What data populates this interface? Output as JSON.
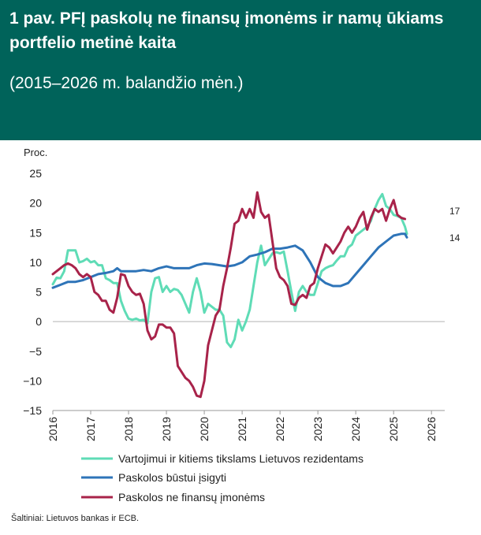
{
  "header": {
    "title": "1 pav. PFĮ paskolų ne finansų įmonėms ir namų ūkiams portfelio metinė kaita",
    "subtitle": "(2015–2026 m. balandžio mėn.)"
  },
  "source": "Šaltiniai: Lietuvos bankas ir ECB.",
  "colors": {
    "header_bg": "#00635a",
    "consumer": "#5fdcb6",
    "housing": "#2e74b8",
    "nfc": "#a8234a"
  },
  "chart_data": {
    "type": "line",
    "ylabel": "Proc.",
    "ylim": [
      -15,
      25
    ],
    "yticks": [
      25,
      20,
      15,
      10,
      5,
      0,
      -5,
      -10,
      -15
    ],
    "xlim": [
      2016,
      2026.35
    ],
    "xticks": [
      "2016",
      "2017",
      "2018",
      "2019",
      "2020",
      "2021",
      "2022",
      "2023",
      "2024",
      "2025",
      "2026"
    ],
    "grid": false,
    "legend_position": "bottom",
    "end_labels": [
      "17",
      "14"
    ],
    "series": [
      {
        "name": "Vartojimui ir kitiems tikslams Lietuvos rezidentams",
        "color_key": "consumer",
        "points": [
          [
            2016.0,
            6.3
          ],
          [
            2016.1,
            7.4
          ],
          [
            2016.2,
            7.3
          ],
          [
            2016.3,
            8.5
          ],
          [
            2016.4,
            12.0
          ],
          [
            2016.5,
            12.0
          ],
          [
            2016.6,
            12.0
          ],
          [
            2016.7,
            10.0
          ],
          [
            2016.8,
            10.2
          ],
          [
            2016.9,
            10.6
          ],
          [
            2017.0,
            10.0
          ],
          [
            2017.1,
            10.2
          ],
          [
            2017.2,
            9.5
          ],
          [
            2017.3,
            9.5
          ],
          [
            2017.4,
            7.3
          ],
          [
            2017.5,
            7.0
          ],
          [
            2017.6,
            6.5
          ],
          [
            2017.7,
            6.5
          ],
          [
            2017.8,
            3.5
          ],
          [
            2017.9,
            1.8
          ],
          [
            2018.0,
            0.5
          ],
          [
            2018.1,
            0.3
          ],
          [
            2018.2,
            0.5
          ],
          [
            2018.3,
            0.2
          ],
          [
            2018.4,
            0.3
          ],
          [
            2018.5,
            -0.3
          ],
          [
            2018.6,
            5.0
          ],
          [
            2018.7,
            7.3
          ],
          [
            2018.8,
            7.5
          ],
          [
            2018.9,
            5.0
          ],
          [
            2019.0,
            6.0
          ],
          [
            2019.1,
            5.0
          ],
          [
            2019.2,
            5.5
          ],
          [
            2019.3,
            5.3
          ],
          [
            2019.4,
            4.5
          ],
          [
            2019.5,
            3.0
          ],
          [
            2019.6,
            1.5
          ],
          [
            2019.7,
            5.0
          ],
          [
            2019.8,
            7.3
          ],
          [
            2019.9,
            5.0
          ],
          [
            2020.0,
            1.5
          ],
          [
            2020.1,
            3.0
          ],
          [
            2020.2,
            2.5
          ],
          [
            2020.3,
            2.0
          ],
          [
            2020.4,
            2.0
          ],
          [
            2020.5,
            1.0
          ],
          [
            2020.6,
            -3.5
          ],
          [
            2020.7,
            -4.3
          ],
          [
            2020.8,
            -3.0
          ],
          [
            2020.9,
            0.3
          ],
          [
            2021.0,
            -1.5
          ],
          [
            2021.1,
            0.0
          ],
          [
            2021.2,
            2.0
          ],
          [
            2021.3,
            6.0
          ],
          [
            2021.4,
            10.0
          ],
          [
            2021.5,
            12.8
          ],
          [
            2021.6,
            9.5
          ],
          [
            2021.7,
            10.5
          ],
          [
            2021.8,
            11.5
          ],
          [
            2021.9,
            11.7
          ],
          [
            2022.0,
            11.5
          ],
          [
            2022.1,
            11.8
          ],
          [
            2022.2,
            8.5
          ],
          [
            2022.3,
            5.0
          ],
          [
            2022.4,
            1.8
          ],
          [
            2022.5,
            5.0
          ],
          [
            2022.6,
            6.0
          ],
          [
            2022.7,
            5.0
          ],
          [
            2022.8,
            4.5
          ],
          [
            2022.9,
            4.5
          ],
          [
            2023.0,
            6.5
          ],
          [
            2023.1,
            8.5
          ],
          [
            2023.2,
            9.0
          ],
          [
            2023.3,
            9.3
          ],
          [
            2023.4,
            9.5
          ],
          [
            2023.5,
            10.3
          ],
          [
            2023.6,
            11.0
          ],
          [
            2023.7,
            11.0
          ],
          [
            2023.8,
            12.5
          ],
          [
            2023.9,
            13.0
          ],
          [
            2024.0,
            14.5
          ],
          [
            2024.1,
            15.0
          ],
          [
            2024.2,
            15.5
          ],
          [
            2024.3,
            16.0
          ],
          [
            2024.4,
            17.0
          ],
          [
            2024.5,
            19.0
          ],
          [
            2024.6,
            20.5
          ],
          [
            2024.7,
            21.5
          ],
          [
            2024.8,
            19.5
          ],
          [
            2024.9,
            19.0
          ],
          [
            2025.0,
            18.0
          ],
          [
            2025.1,
            17.8
          ],
          [
            2025.2,
            17.5
          ],
          [
            2025.3,
            16.0
          ],
          [
            2025.35,
            14.8
          ]
        ]
      },
      {
        "name": "Paskolos būstui įsigyti",
        "color_key": "housing",
        "points": [
          [
            2016.0,
            5.7
          ],
          [
            2016.2,
            6.2
          ],
          [
            2016.4,
            6.7
          ],
          [
            2016.6,
            6.7
          ],
          [
            2016.8,
            7.0
          ],
          [
            2017.0,
            7.5
          ],
          [
            2017.2,
            8.0
          ],
          [
            2017.4,
            8.2
          ],
          [
            2017.6,
            8.5
          ],
          [
            2017.7,
            9.0
          ],
          [
            2017.8,
            8.5
          ],
          [
            2018.0,
            8.5
          ],
          [
            2018.2,
            8.5
          ],
          [
            2018.4,
            8.7
          ],
          [
            2018.6,
            8.5
          ],
          [
            2018.8,
            9.0
          ],
          [
            2019.0,
            9.3
          ],
          [
            2019.2,
            9.0
          ],
          [
            2019.4,
            9.0
          ],
          [
            2019.6,
            9.0
          ],
          [
            2019.8,
            9.5
          ],
          [
            2020.0,
            9.8
          ],
          [
            2020.2,
            9.7
          ],
          [
            2020.4,
            9.5
          ],
          [
            2020.6,
            9.3
          ],
          [
            2020.8,
            9.5
          ],
          [
            2021.0,
            10.0
          ],
          [
            2021.2,
            11.0
          ],
          [
            2021.4,
            11.3
          ],
          [
            2021.6,
            11.7
          ],
          [
            2021.8,
            12.3
          ],
          [
            2022.0,
            12.3
          ],
          [
            2022.2,
            12.5
          ],
          [
            2022.4,
            12.8
          ],
          [
            2022.6,
            12.0
          ],
          [
            2022.8,
            10.0
          ],
          [
            2023.0,
            7.5
          ],
          [
            2023.2,
            6.5
          ],
          [
            2023.4,
            6.0
          ],
          [
            2023.6,
            6.0
          ],
          [
            2023.8,
            6.5
          ],
          [
            2024.0,
            8.0
          ],
          [
            2024.2,
            9.5
          ],
          [
            2024.4,
            11.0
          ],
          [
            2024.6,
            12.5
          ],
          [
            2024.8,
            13.5
          ],
          [
            2025.0,
            14.5
          ],
          [
            2025.2,
            14.8
          ],
          [
            2025.3,
            14.8
          ],
          [
            2025.35,
            14.2
          ]
        ]
      },
      {
        "name": "Paskolos ne finansų įmonėms",
        "color_key": "nfc",
        "points": [
          [
            2016.0,
            8.0
          ],
          [
            2016.1,
            8.5
          ],
          [
            2016.2,
            9.0
          ],
          [
            2016.3,
            9.5
          ],
          [
            2016.4,
            9.8
          ],
          [
            2016.5,
            9.5
          ],
          [
            2016.6,
            9.0
          ],
          [
            2016.7,
            8.0
          ],
          [
            2016.8,
            7.5
          ],
          [
            2016.9,
            8.0
          ],
          [
            2017.0,
            7.5
          ],
          [
            2017.1,
            5.0
          ],
          [
            2017.2,
            4.5
          ],
          [
            2017.3,
            3.5
          ],
          [
            2017.4,
            3.5
          ],
          [
            2017.5,
            2.0
          ],
          [
            2017.6,
            1.5
          ],
          [
            2017.7,
            4.0
          ],
          [
            2017.8,
            8.0
          ],
          [
            2017.9,
            7.8
          ],
          [
            2018.0,
            6.0
          ],
          [
            2018.1,
            5.0
          ],
          [
            2018.2,
            4.5
          ],
          [
            2018.3,
            4.7
          ],
          [
            2018.4,
            3.0
          ],
          [
            2018.5,
            -1.5
          ],
          [
            2018.6,
            -3.0
          ],
          [
            2018.7,
            -2.5
          ],
          [
            2018.8,
            -0.5
          ],
          [
            2018.9,
            -0.5
          ],
          [
            2019.0,
            -1.0
          ],
          [
            2019.1,
            -1.0
          ],
          [
            2019.2,
            -2.0
          ],
          [
            2019.3,
            -7.5
          ],
          [
            2019.4,
            -8.5
          ],
          [
            2019.5,
            -9.5
          ],
          [
            2019.6,
            -10.0
          ],
          [
            2019.7,
            -11.0
          ],
          [
            2019.8,
            -12.5
          ],
          [
            2019.9,
            -12.7
          ],
          [
            2020.0,
            -10.0
          ],
          [
            2020.1,
            -4.0
          ],
          [
            2020.2,
            -1.5
          ],
          [
            2020.3,
            1.0
          ],
          [
            2020.4,
            2.0
          ],
          [
            2020.5,
            6.0
          ],
          [
            2020.6,
            9.0
          ],
          [
            2020.7,
            12.5
          ],
          [
            2020.8,
            16.5
          ],
          [
            2020.9,
            17.0
          ],
          [
            2021.0,
            19.0
          ],
          [
            2021.1,
            17.5
          ],
          [
            2021.2,
            19.0
          ],
          [
            2021.3,
            17.5
          ],
          [
            2021.4,
            21.8
          ],
          [
            2021.5,
            18.5
          ],
          [
            2021.6,
            17.5
          ],
          [
            2021.7,
            18.0
          ],
          [
            2021.8,
            13.5
          ],
          [
            2021.9,
            9.0
          ],
          [
            2022.0,
            7.5
          ],
          [
            2022.1,
            7.0
          ],
          [
            2022.2,
            6.0
          ],
          [
            2022.3,
            3.0
          ],
          [
            2022.4,
            2.8
          ],
          [
            2022.5,
            4.0
          ],
          [
            2022.6,
            4.5
          ],
          [
            2022.7,
            4.0
          ],
          [
            2022.8,
            6.0
          ],
          [
            2022.9,
            6.5
          ],
          [
            2023.0,
            9.0
          ],
          [
            2023.1,
            11.0
          ],
          [
            2023.2,
            13.0
          ],
          [
            2023.3,
            12.5
          ],
          [
            2023.4,
            11.5
          ],
          [
            2023.5,
            12.5
          ],
          [
            2023.6,
            13.5
          ],
          [
            2023.7,
            15.0
          ],
          [
            2023.8,
            16.0
          ],
          [
            2023.9,
            15.0
          ],
          [
            2024.0,
            16.0
          ],
          [
            2024.1,
            17.5
          ],
          [
            2024.2,
            18.5
          ],
          [
            2024.3,
            15.5
          ],
          [
            2024.4,
            17.5
          ],
          [
            2024.5,
            19.0
          ],
          [
            2024.6,
            18.5
          ],
          [
            2024.7,
            19.0
          ],
          [
            2024.8,
            17.0
          ],
          [
            2024.9,
            19.0
          ],
          [
            2025.0,
            20.5
          ],
          [
            2025.1,
            18.0
          ],
          [
            2025.2,
            17.5
          ],
          [
            2025.3,
            17.3
          ]
        ]
      }
    ]
  }
}
